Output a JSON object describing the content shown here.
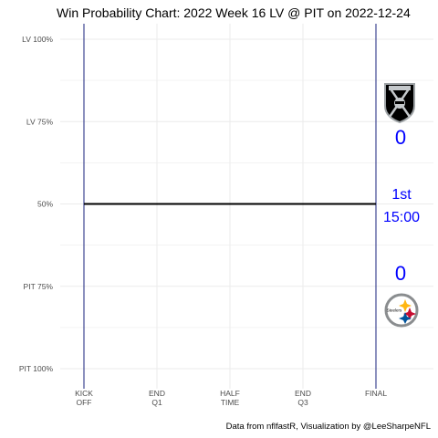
{
  "chart_data": {
    "type": "line",
    "title": "Win Probability Chart: 2022 Week 16 LV @ PIT on 2022-12-24",
    "caption": "Data from nflfastR, Visualization by @LeeSharpeNFL",
    "x_ticks": [
      "KICK OFF",
      "END Q1",
      "HALF TIME",
      "END Q3",
      "FINAL"
    ],
    "y_ticks": [
      "LV 100%",
      "LV 75%",
      "50%",
      "PIT 75%",
      "PIT 100%"
    ],
    "xlim": [
      0,
      3600
    ],
    "ylim": [
      0,
      1
    ],
    "grid": true,
    "series": [
      {
        "color": "#000000",
        "x": [
          0,
          3600
        ],
        "y": [
          0.5,
          0.5
        ]
      }
    ],
    "annotations": {
      "away_team": "LV",
      "home_team": "PIT",
      "away_score": "0",
      "home_score": "0",
      "quarter": "1st",
      "clock": "15:00",
      "text_color": "#0000ff",
      "boundary_color": "#1a237e"
    }
  }
}
